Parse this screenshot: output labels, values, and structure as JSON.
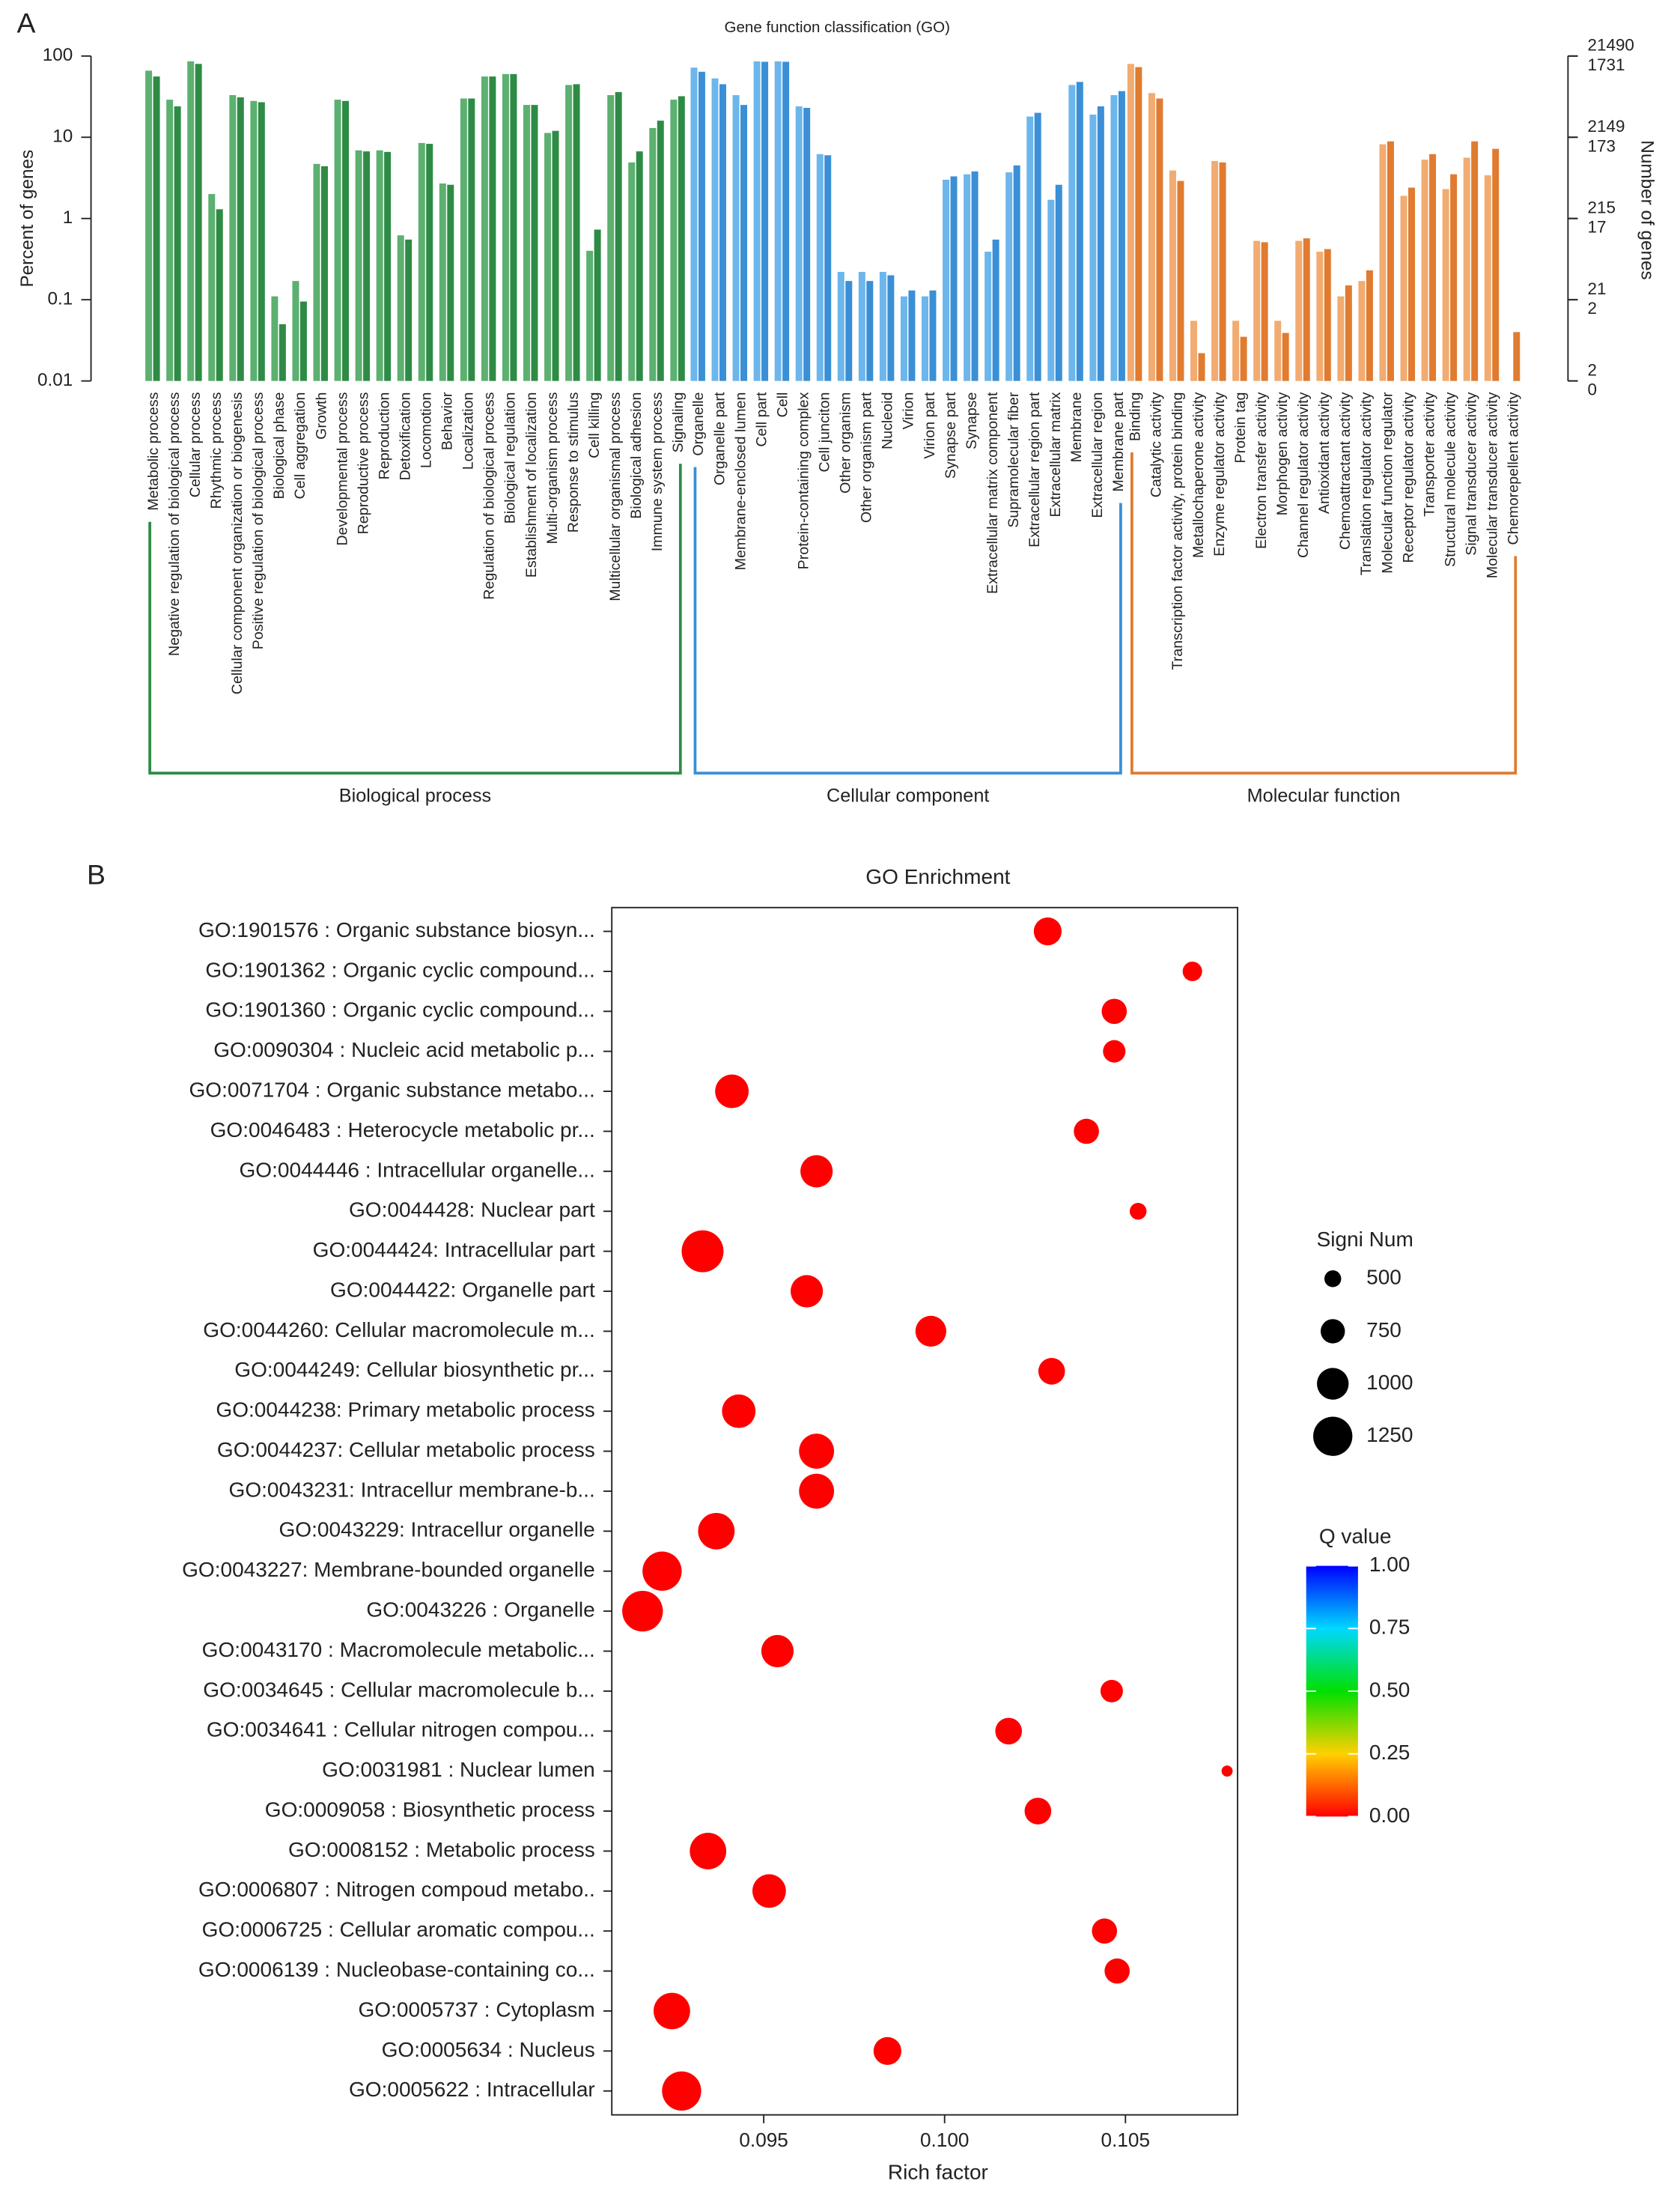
{
  "chart_data": [
    {
      "type": "bar",
      "panel_label": "A",
      "title": "Gene function classification (GO)",
      "ylabel": "Percent of genes",
      "y2label": "Number of genes",
      "log_y": true,
      "ylim": [
        0.01,
        100
      ],
      "yticks": [
        0.01,
        0.1,
        1,
        10,
        100
      ],
      "y2ticks": [
        {
          "value": 100,
          "label": "21490"
        },
        {
          "value": 10,
          "label": "2149"
        },
        {
          "value": 1,
          "label": "215"
        },
        {
          "value": 0.1,
          "label": "21"
        },
        {
          "value": 0.01,
          "label": "2"
        }
      ],
      "y3ticks": [
        {
          "value": 100,
          "label": "1731"
        },
        {
          "value": 10,
          "label": "173"
        },
        {
          "value": 1,
          "label": "17"
        },
        {
          "value": 0.1,
          "label": "2"
        },
        {
          "value": 0.01,
          "label": "0"
        }
      ],
      "groups": [
        {
          "name": "Biological process",
          "bracket_color": "#2e8b45",
          "categories": [
            "Metabolic process",
            "Negative regulation of biological process",
            "Cellular process",
            "Rhythmic process",
            "Cellular component organization or biogenesis",
            "Positive regulation of biological process",
            "Biological phase",
            "Cell aggregation",
            "Growth",
            "Developmental process",
            "Reproductive process",
            "Reproduction",
            "Detoxification",
            "Locomotion",
            "Behavior",
            "Localization",
            "Regulation of biological process",
            "Biological regulation",
            "Establishment of localization",
            "Multi-organism process",
            "Response to stimulus",
            "Cell killing",
            "Multicellular organismal process",
            "Biological adhesion",
            "Immune system process",
            "Signaling"
          ],
          "series": [
            {
              "color": "#5cb070",
              "values": [
                66,
                29,
                86,
                2.0,
                33,
                28,
                0.11,
                0.17,
                4.7,
                29,
                6.9,
                6.9,
                0.62,
                8.5,
                2.7,
                30,
                56,
                60,
                25,
                11.3,
                44,
                0.4,
                33,
                4.9,
                13,
                29
              ]
            },
            {
              "color": "#2e8b45",
              "values": [
                56,
                24,
                80,
                1.3,
                31,
                27,
                0.05,
                0.095,
                4.4,
                28,
                6.7,
                6.6,
                0.55,
                8.3,
                2.6,
                30,
                56,
                60,
                25,
                12,
                45,
                0.73,
                36,
                6.7,
                16,
                32
              ]
            }
          ]
        },
        {
          "name": "Cellular component",
          "bracket_color": "#3a8fd6",
          "categories": [
            "Organelle",
            "Organelle part",
            "Membrane-enclosed lumen",
            "Cell part",
            "Cell",
            "Protein-containing complex",
            "Cell junciton",
            "Other organism",
            "Other organism part",
            "Nucleoid",
            "Virion",
            "Virion part",
            "Synapse part",
            "Synapse",
            "Extracellular matrix component",
            "Supramolecular fiber",
            "Extracellular region part",
            "Extracellular matrix",
            "Membrane",
            "Extracellular region",
            "Membrane part"
          ],
          "series": [
            {
              "color": "#6cb6ec",
              "values": [
                72,
                53,
                33,
                86,
                86,
                24,
                6.2,
                0.22,
                0.22,
                0.22,
                0.11,
                0.11,
                3.0,
                3.5,
                0.39,
                3.7,
                18,
                1.7,
                44,
                19,
                33
              ]
            },
            {
              "color": "#3a8fd6",
              "values": [
                64,
                45,
                25,
                85,
                85,
                23,
                6.0,
                0.17,
                0.17,
                0.2,
                0.13,
                0.13,
                3.3,
                3.8,
                0.55,
                4.5,
                20,
                2.6,
                48,
                24,
                37
              ]
            }
          ]
        },
        {
          "name": "Molecular function",
          "bracket_color": "#e07b30",
          "categories": [
            "Binding",
            "Catalytic activity",
            "Transcription factor activity, protein binding",
            "Metallochaperone activity",
            "Enzyme regulator activity",
            "Protein tag",
            "Electron transfer activity",
            "Morphogen activity",
            "Channel regulator activity",
            "Antioxidant activity",
            "Chemoattractant activity",
            "Translation regulator activity",
            "Molecular function regulator",
            "Receptor regulator activity",
            "Transporter activity",
            "Structural molecule activity",
            "Signal transducer activity",
            "Molecular transducer activity",
            "Chemorepellent activity"
          ],
          "series": [
            {
              "color": "#f2ab70",
              "values": [
                80,
                35,
                3.9,
                0.055,
                5.1,
                0.055,
                0.53,
                0.055,
                0.53,
                0.39,
                0.11,
                0.17,
                8.2,
                1.9,
                5.3,
                2.3,
                5.6,
                3.4,
                0.01
              ]
            },
            {
              "color": "#e07b30",
              "values": [
                73,
                30,
                2.9,
                0.022,
                4.9,
                0.035,
                0.51,
                0.039,
                0.57,
                0.42,
                0.15,
                0.23,
                8.9,
                2.4,
                6.2,
                3.5,
                8.9,
                7.2,
                0.04
              ]
            }
          ]
        }
      ]
    },
    {
      "type": "scatter",
      "panel_label": "B",
      "title": "GO Enrichment",
      "xlabel": "Rich factor",
      "xlim": [
        0.0908,
        0.1081
      ],
      "xticks": [
        0.095,
        {
          "value": 0.1,
          "label": "0.100"
        },
        0.105
      ],
      "categories": [
        "GO:1901576 : Organic substance biosyn...",
        "GO:1901362 : Organic cyclic compound...",
        "GO:1901360 : Organic cyclic compound...",
        "GO:0090304 : Nucleic acid metabolic p...",
        "GO:0071704 : Organic substance metabo...",
        "GO:0046483 : Heterocycle metabolic pr...",
        "GO:0044446 : Intracellular organelle...",
        "GO:0044428: Nuclear part",
        "GO:0044424: Intracellular part",
        "GO:0044422: Organelle part",
        "GO:0044260: Cellular macromolecule m...",
        "GO:0044249: Cellular biosynthetic pr...",
        "GO:0044238: Primary metabolic process",
        "GO:0044237: Cellular metabolic process",
        "GO:0043231: Intracellur membrane-b...",
        "GO:0043229: Intracellur organelle",
        "GO:0043227: Membrane-bounded organelle",
        "GO:0043226 : Organelle",
        "GO:0043170 : Macromolecule metabolic...",
        "GO:0034645 : Cellular macromolecule b...",
        "GO:0034641 : Cellular nitrogen compou...",
        "GO:0031981 : Nuclear lumen",
        "GO:0009058 : Biosynthetic process",
        "GO:0008152 : Metabolic process",
        "GO:0006807 : Nitrogen compoud metabo..",
        "GO:0006725 : Cellular aromatic compou...",
        "GO:0006139 : Nucleobase-containing co...",
        "GO:0005737 : Cytoplasm",
        "GO:0005634 : Nucleus",
        "GO:0005622 : Intracellular"
      ],
      "x": [
        0.10285,
        0.10685,
        0.10469,
        0.10469,
        0.09412,
        0.10392,
        0.09646,
        0.10535,
        0.09331,
        0.09619,
        0.09962,
        0.10296,
        0.09431,
        0.09646,
        0.09646,
        0.09369,
        0.09219,
        0.09165,
        0.09538,
        0.10462,
        0.10177,
        0.10781,
        0.10258,
        0.09346,
        0.09515,
        0.10442,
        0.10477,
        0.09246,
        0.09842,
        0.09273
      ],
      "sizes": [
        870,
        590,
        780,
        690,
        1060,
        780,
        1020,
        500,
        1340,
        1020,
        970,
        830,
        1060,
        1110,
        1110,
        1160,
        1250,
        1300,
        1020,
        690,
        830,
        310,
        830,
        1160,
        1060,
        780,
        780,
        1160,
        870,
        1250
      ],
      "q_values": [
        0,
        0,
        0,
        0,
        0,
        0,
        0,
        0,
        0,
        0,
        0,
        0,
        0,
        0,
        0,
        0,
        0,
        0,
        0,
        0,
        0,
        0,
        0,
        0,
        0,
        0,
        0,
        0,
        0,
        0
      ],
      "size_title": "Signi Num",
      "size_ticks": [
        500,
        750,
        1000,
        1250
      ],
      "color_title": "Q value",
      "color_ticks": [
        {
          "value": 1,
          "label": "1.00"
        },
        {
          "value": 0.75,
          "label": "0.75"
        },
        {
          "value": 0.5,
          "label": "0.50"
        },
        {
          "value": 0.25,
          "label": "0.25"
        },
        {
          "value": 0,
          "label": "0.00"
        }
      ],
      "colormap": [
        "#ff0000",
        "#ffd000",
        "#00e000",
        "#00d8ff",
        "#0000ff"
      ]
    }
  ]
}
